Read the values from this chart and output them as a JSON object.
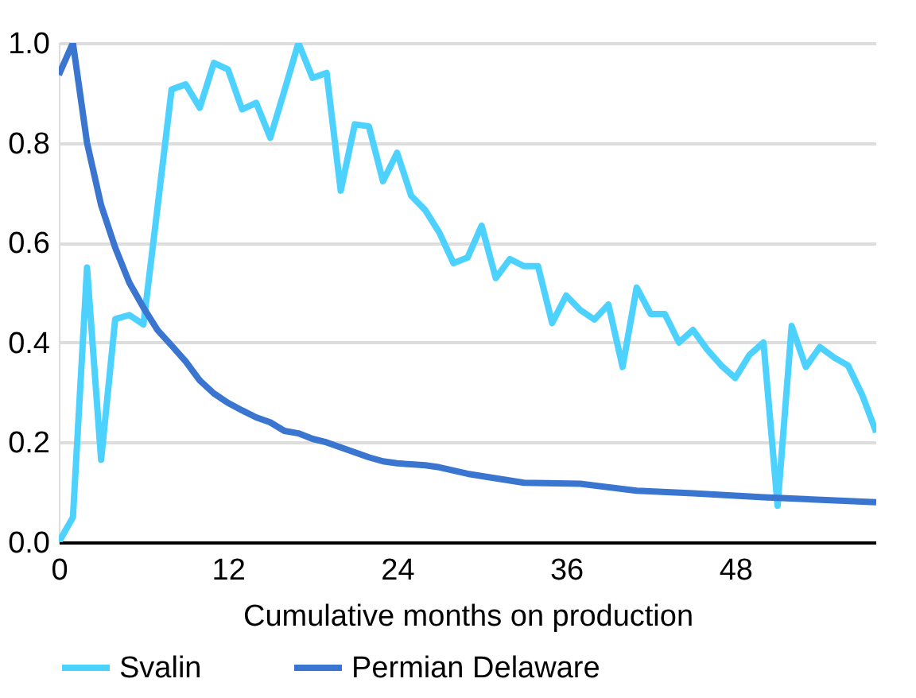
{
  "chart_data": {
    "type": "line",
    "xlabel": "Cumulative months on production",
    "xlim": [
      0,
      58
    ],
    "xticks": [
      0,
      12,
      24,
      36,
      48
    ],
    "ylim": [
      0,
      1
    ],
    "yticks": [
      {
        "value": 0,
        "label": "0.0"
      },
      {
        "value": 0.2,
        "label": "0.2"
      },
      {
        "value": 0.4,
        "label": "0.4"
      },
      {
        "value": 0.6,
        "label": "0.6"
      },
      {
        "value": 0.8,
        "label": "0.8"
      },
      {
        "value": 1,
        "label": "1.0"
      }
    ],
    "grid": "y",
    "legend": "bottom",
    "marker": "none",
    "line_style": "solid",
    "series": [
      {
        "name": "Svalin",
        "color": "#4dd2ff",
        "x": [
          0,
          1,
          2,
          3,
          4,
          5,
          6,
          7,
          8,
          9,
          10,
          11,
          12,
          13,
          14,
          15,
          16,
          17,
          18,
          19,
          20,
          21,
          22,
          23,
          24,
          25,
          26,
          27,
          28,
          29,
          30,
          31,
          32,
          33,
          34,
          35,
          36,
          37,
          38,
          39,
          40,
          41,
          42,
          43,
          44,
          45,
          46,
          47,
          48,
          49,
          50,
          51,
          52,
          53,
          54,
          55,
          56,
          57,
          58
        ],
        "values": [
          0.0,
          0.05,
          0.55,
          0.165,
          0.447,
          0.455,
          0.436,
          0.67,
          0.907,
          0.917,
          0.87,
          0.96,
          0.947,
          0.867,
          0.88,
          0.81,
          0.904,
          1.0,
          0.93,
          0.94,
          0.704,
          0.837,
          0.833,
          0.723,
          0.78,
          0.694,
          0.665,
          0.62,
          0.559,
          0.57,
          0.634,
          0.529,
          0.567,
          0.553,
          0.553,
          0.439,
          0.494,
          0.465,
          0.446,
          0.476,
          0.351,
          0.51,
          0.457,
          0.457,
          0.4,
          0.425,
          0.386,
          0.354,
          0.329,
          0.375,
          0.4,
          0.073,
          0.433,
          0.351,
          0.391,
          0.37,
          0.354,
          0.295,
          0.22
        ]
      },
      {
        "name": "Permian Delaware",
        "color": "#3a75cf",
        "x": [
          0,
          1,
          2,
          3,
          4,
          5,
          6,
          7,
          8,
          9,
          10,
          11,
          12,
          13,
          14,
          15,
          16,
          17,
          18,
          19,
          20,
          21,
          22,
          23,
          24,
          25,
          26,
          27,
          29,
          33,
          37,
          41,
          45,
          50,
          58
        ],
        "values": [
          0.936,
          1.0,
          0.8,
          0.675,
          0.59,
          0.52,
          0.47,
          0.425,
          0.394,
          0.362,
          0.324,
          0.298,
          0.279,
          0.264,
          0.25,
          0.24,
          0.223,
          0.218,
          0.207,
          0.2,
          0.19,
          0.18,
          0.17,
          0.162,
          0.158,
          0.156,
          0.154,
          0.15,
          0.137,
          0.119,
          0.117,
          0.103,
          0.098,
          0.09,
          0.08
        ]
      }
    ]
  }
}
